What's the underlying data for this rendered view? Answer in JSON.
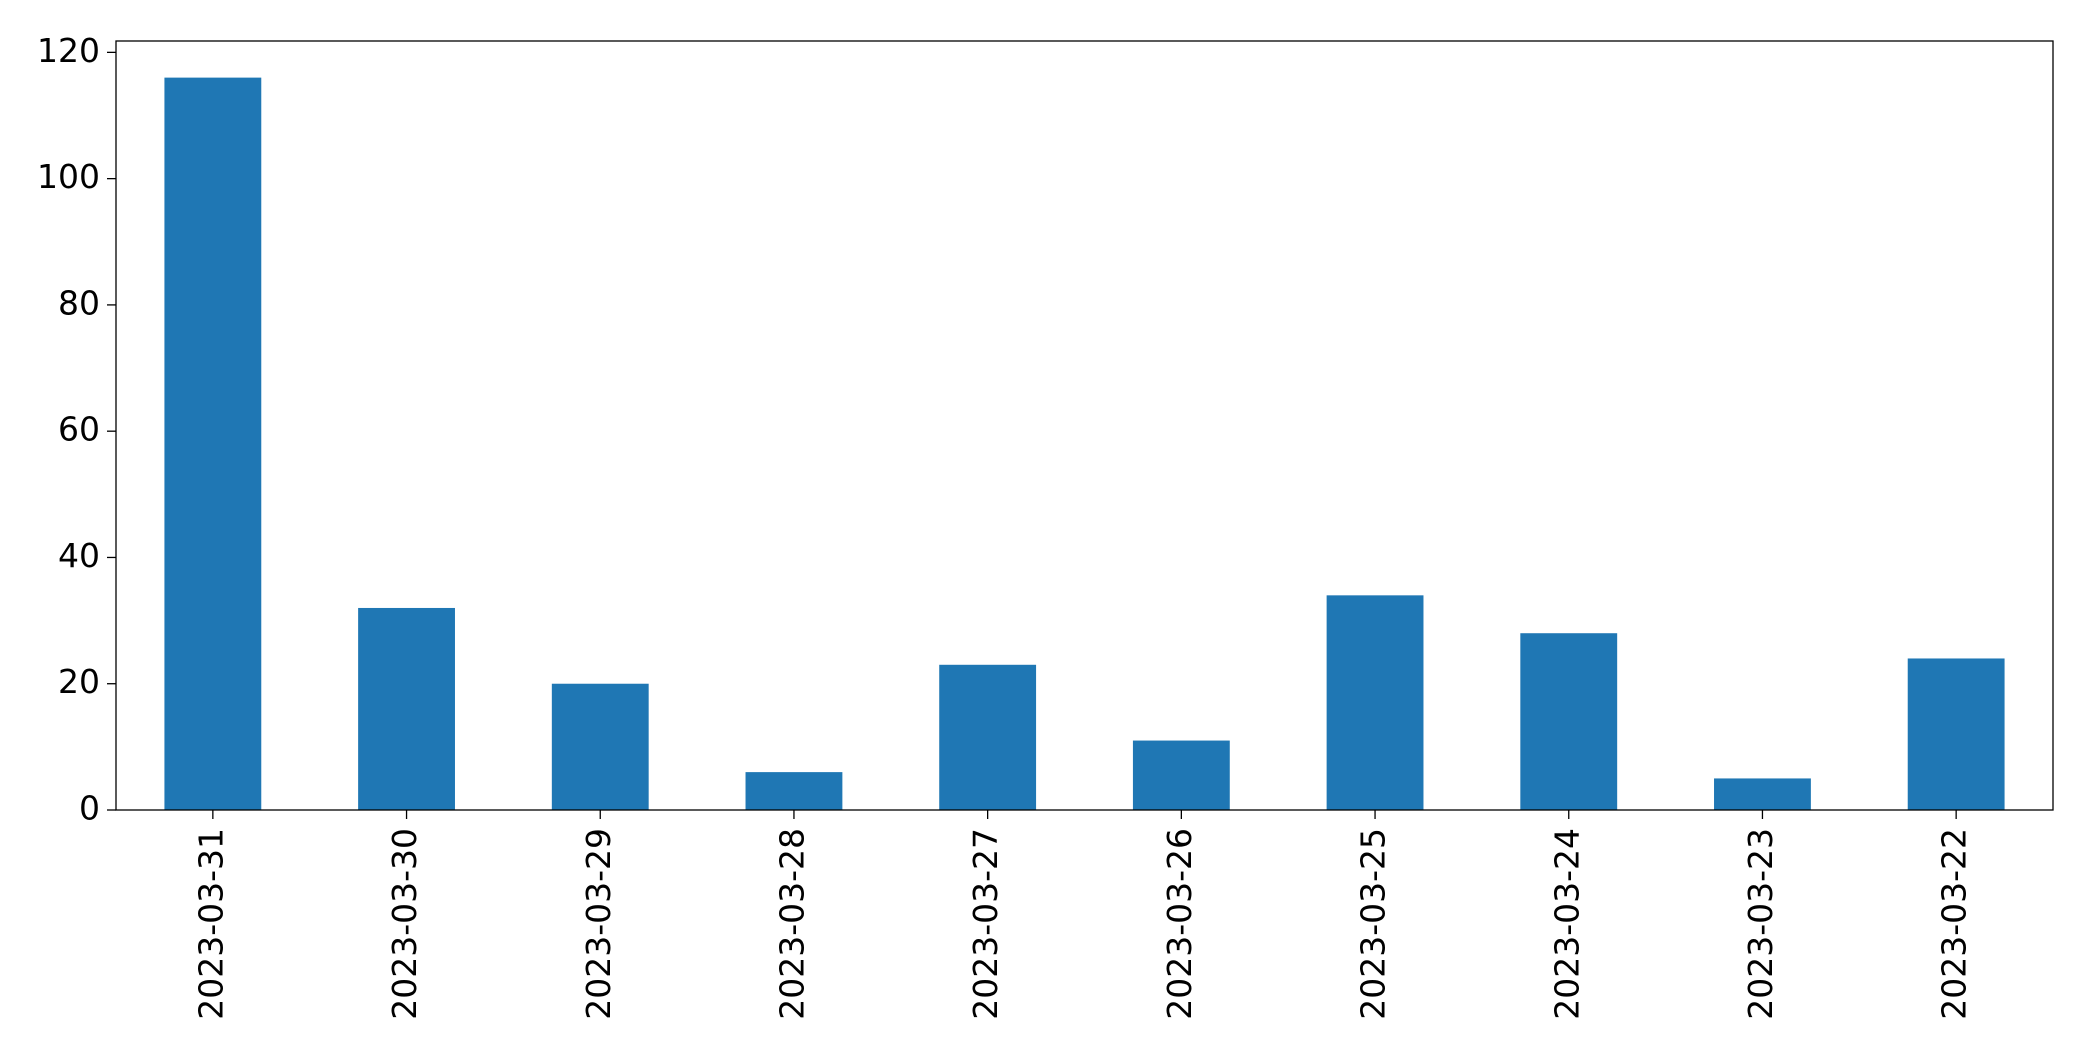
{
  "chart_data": {
    "type": "bar",
    "categories": [
      "2023-03-31",
      "2023-03-30",
      "2023-03-29",
      "2023-03-28",
      "2023-03-27",
      "2023-03-26",
      "2023-03-25",
      "2023-03-24",
      "2023-03-23",
      "2023-03-22"
    ],
    "values": [
      116,
      32,
      20,
      6,
      23,
      11,
      34,
      28,
      5,
      24
    ],
    "color": "#1f77b4",
    "ylim": [
      0,
      121.8
    ],
    "yticks": [
      0,
      20,
      40,
      60,
      80,
      100,
      120
    ],
    "grid": false
  }
}
